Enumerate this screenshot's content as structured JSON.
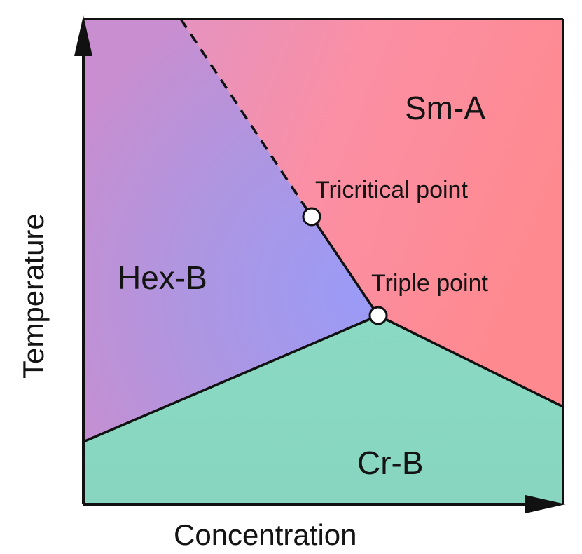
{
  "axes": {
    "x_label": "Concentration",
    "y_label": "Temperature"
  },
  "regions": {
    "sm_a": "Sm-A",
    "hex_b": "Hex-B",
    "cr_b": "Cr-B"
  },
  "points": {
    "tricritical": "Tricritical point",
    "triple": "Triple point"
  },
  "colors": {
    "sm_a": "#fd8d94",
    "hex_b_top": "#cb8ecd",
    "hex_b_center": "#9d9af5",
    "hex_b_bottom": "#a99ae8",
    "cr_b": "#89d8c2",
    "boundary": "#111111"
  }
}
